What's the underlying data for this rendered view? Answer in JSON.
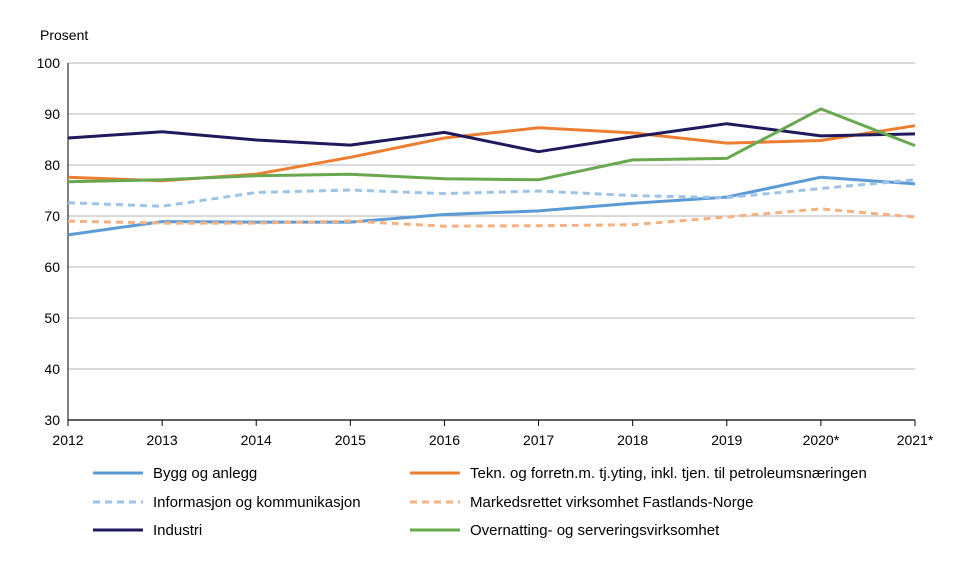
{
  "chart_data": {
    "type": "line",
    "title": "",
    "ylabel": "Prosent",
    "xlabel": "",
    "ylim": [
      30,
      100
    ],
    "yticks": [
      30,
      40,
      50,
      60,
      70,
      80,
      90,
      100
    ],
    "categories": [
      "2012",
      "2013",
      "2014",
      "2015",
      "2016",
      "2017",
      "2018",
      "2019",
      "2020*",
      "2021*"
    ],
    "grid": true,
    "legend_position": "bottom",
    "series": [
      {
        "name": "Bygg og anlegg",
        "color": "#5b9bd5",
        "dashed": false,
        "values": [
          66.3,
          68.9,
          68.8,
          68.8,
          70.3,
          71.0,
          72.5,
          73.7,
          77.6,
          76.3
        ]
      },
      {
        "name": "Tekn. og forretn.m. tj.yting, inkl. tjen. til petroleumsnæringen",
        "color": "#ed7d31",
        "dashed": false,
        "values": [
          77.6,
          76.9,
          78.2,
          81.5,
          85.3,
          87.3,
          86.3,
          84.3,
          84.8,
          87.7
        ]
      },
      {
        "name": "Informasjon og kommunikasjon",
        "color": "#9dc3e6",
        "dashed": true,
        "values": [
          72.6,
          71.9,
          74.6,
          75.1,
          74.4,
          74.9,
          74.0,
          73.6,
          75.4,
          77.1
        ]
      },
      {
        "name": "Markedsrettet virksomhet Fastlands-Norge",
        "color": "#f4b183",
        "dashed": true,
        "values": [
          69.0,
          68.6,
          68.6,
          69.0,
          68.0,
          68.1,
          68.3,
          69.8,
          71.4,
          69.8
        ]
      },
      {
        "name": "Industri",
        "color": "#1f1a5c",
        "dashed": false,
        "values": [
          85.3,
          86.5,
          84.9,
          83.9,
          86.4,
          82.6,
          85.5,
          88.1,
          85.7,
          86.1
        ]
      },
      {
        "name": "Overnatting- og serveringsvirksomhet",
        "color": "#6aa84f",
        "dashed": false,
        "values": [
          76.7,
          77.1,
          77.9,
          78.2,
          77.3,
          77.1,
          81.0,
          81.3,
          91.0,
          83.8
        ]
      }
    ]
  }
}
